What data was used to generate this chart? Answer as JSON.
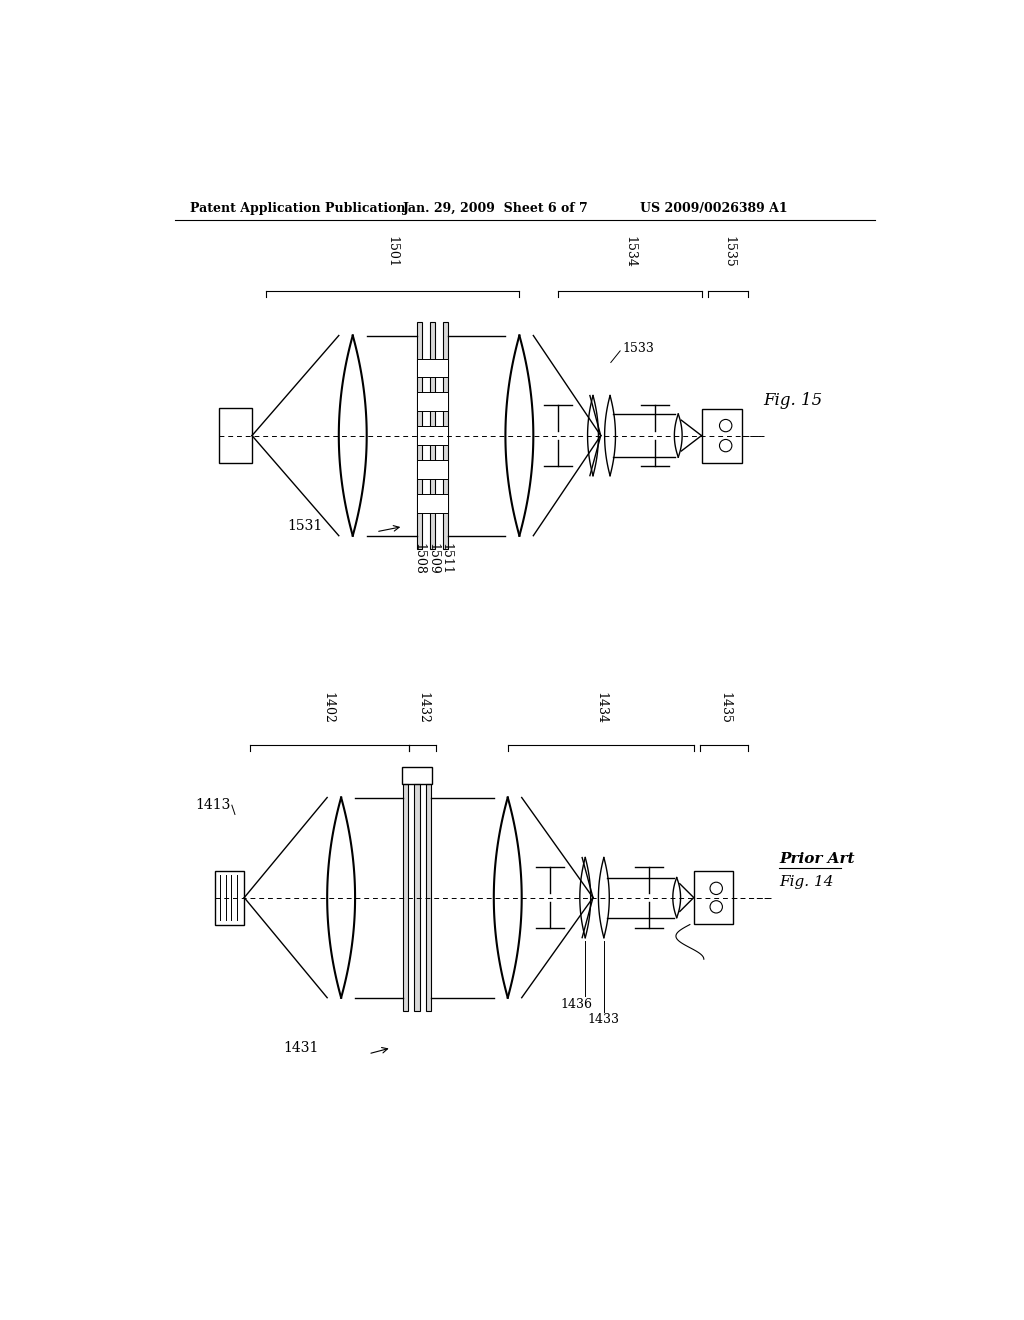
{
  "bg_color": "#ffffff",
  "header_text": "Patent Application Publication",
  "header_date": "Jan. 29, 2009  Sheet 6 of 7",
  "header_patent": "US 2009/0026389 A1",
  "fig15_label": "Fig. 15",
  "fig14_label": "Fig. 14",
  "prior_art_label": "Prior Art"
}
